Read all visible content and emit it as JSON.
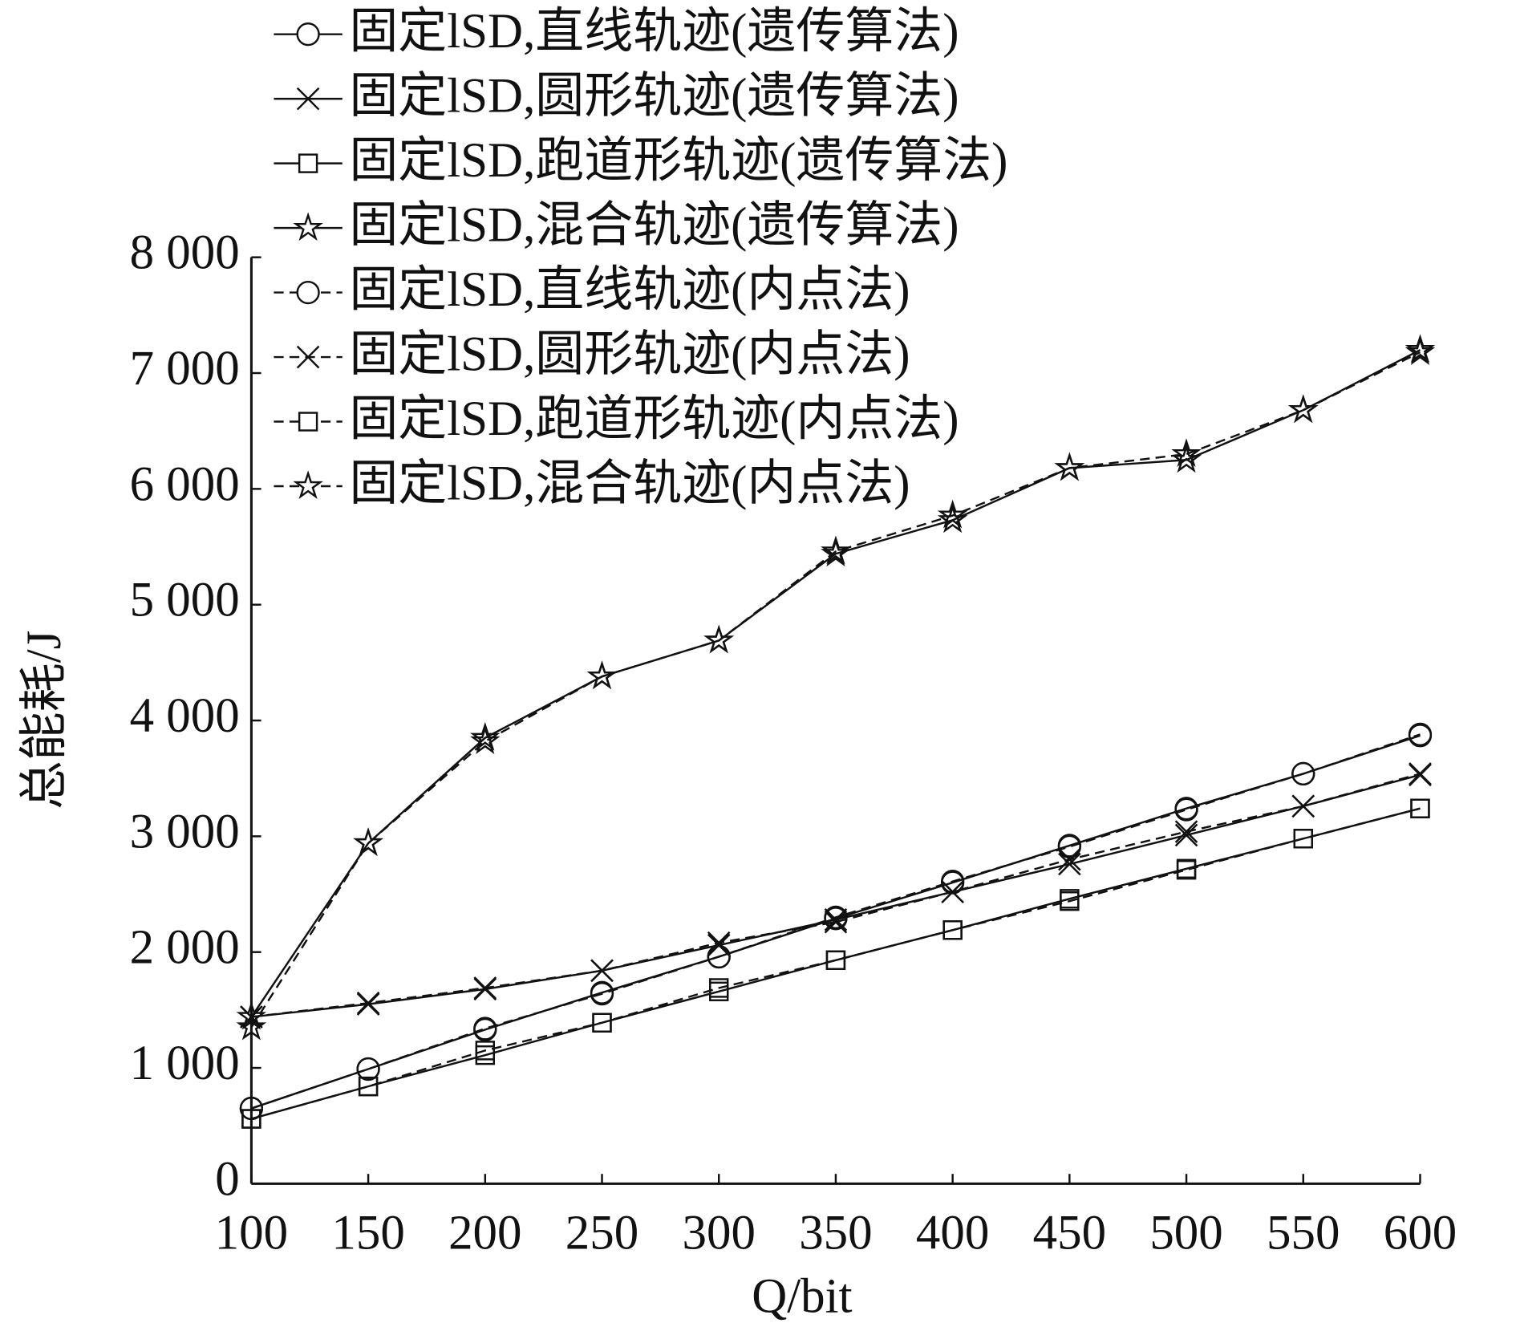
{
  "chart_data": {
    "type": "line",
    "xlabel": "Q/bit",
    "ylabel": "总能耗/J",
    "x": [
      100,
      150,
      200,
      250,
      300,
      350,
      400,
      450,
      500,
      550,
      600
    ],
    "xlim": [
      100,
      600
    ],
    "xticks": [
      100,
      150,
      200,
      250,
      300,
      350,
      400,
      450,
      500,
      550,
      600
    ],
    "ylim": [
      0,
      8000
    ],
    "yticks": [
      0,
      {
        "value": 1000,
        "label": "1 000"
      },
      {
        "value": 2000,
        "label": "2 000"
      },
      {
        "value": 3000,
        "label": "3 000"
      },
      {
        "value": 4000,
        "label": "4 000"
      },
      {
        "value": 5000,
        "label": "5 000"
      },
      {
        "value": 6000,
        "label": "6 000"
      },
      {
        "value": 7000,
        "label": "7 000"
      },
      {
        "value": 8000,
        "label": "8 000"
      }
    ],
    "legend": "upper left",
    "series": [
      {
        "name": "固定lSD,直线轨迹(遗传算法)",
        "color": "#111111",
        "marker": "circle",
        "dashed": false,
        "values": [
          650,
          990,
          1330,
          1650,
          1960,
          2290,
          2600,
          2920,
          3240,
          3540,
          3870
        ]
      },
      {
        "name": "固定lSD,圆形轨迹(遗传算法)",
        "color": "#111111",
        "marker": "x",
        "dashed": false,
        "values": [
          1440,
          1550,
          1680,
          1840,
          2060,
          2280,
          2520,
          2760,
          3010,
          3260,
          3530
        ]
      },
      {
        "name": "固定lSD,跑道形轨迹(遗传算法)",
        "color": "#111111",
        "marker": "square",
        "dashed": false,
        "values": [
          560,
          840,
          1110,
          1390,
          1660,
          1930,
          2190,
          2460,
          2720,
          2980,
          3240
        ]
      },
      {
        "name": "固定lSD,混合轨迹(遗传算法)",
        "color": "#111111",
        "marker": "star",
        "dashed": false,
        "values": [
          1440,
          2940,
          3850,
          4380,
          4690,
          5440,
          5730,
          6180,
          6250,
          6680,
          7200
        ]
      },
      {
        "name": "固定lSD,直线轨迹(内点法)",
        "color": "#111111",
        "marker": "circle",
        "dashed": true,
        "values": [
          650,
          990,
          1340,
          1640,
          1960,
          2300,
          2610,
          2910,
          3230,
          3540,
          3880
        ]
      },
      {
        "name": "固定lSD,圆形轨迹(内点法)",
        "color": "#111111",
        "marker": "x",
        "dashed": true,
        "values": [
          1440,
          1560,
          1690,
          1840,
          2080,
          2260,
          2520,
          2800,
          3040,
          3260,
          3540
        ]
      },
      {
        "name": "固定lSD,跑道形轨迹(内点法)",
        "color": "#111111",
        "marker": "square",
        "dashed": true,
        "values": [
          560,
          840,
          1150,
          1390,
          1690,
          1930,
          2190,
          2440,
          2710,
          2980,
          3240
        ]
      },
      {
        "name": "固定lSD,混合轨迹(内点法)",
        "color": "#111111",
        "marker": "star",
        "dashed": true,
        "values": [
          1350,
          2940,
          3820,
          4380,
          4690,
          5460,
          5770,
          6180,
          6300,
          6680,
          7180
        ]
      }
    ]
  }
}
